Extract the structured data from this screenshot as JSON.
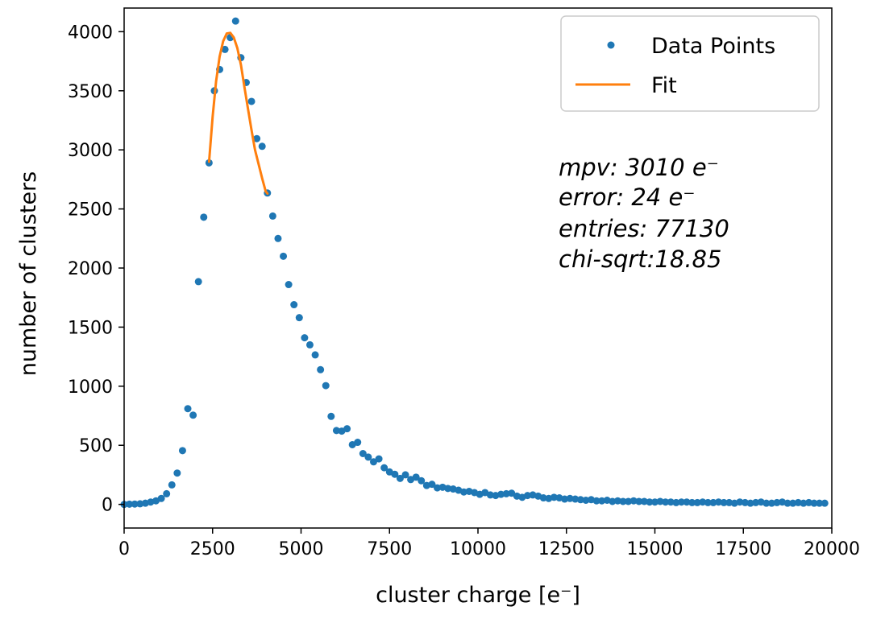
{
  "chart_data": {
    "type": "scatter",
    "xlabel": "cluster charge [e⁻]",
    "ylabel": "number of clusters",
    "xlim": [
      0,
      20000
    ],
    "ylim": [
      -200,
      4200
    ],
    "xticks": [
      0,
      2500,
      5000,
      7500,
      10000,
      12500,
      15000,
      17500,
      20000
    ],
    "yticks": [
      0,
      500,
      1000,
      1500,
      2000,
      2500,
      3000,
      3500,
      4000
    ],
    "grid": false,
    "legend_position": "top-right",
    "colors": {
      "data": "#1f77b4",
      "fit": "#ff7f0e"
    },
    "series": [
      {
        "name": "Data Points",
        "type": "scatter",
        "x": [
          0,
          150,
          300,
          450,
          600,
          750,
          900,
          1050,
          1200,
          1350,
          1500,
          1650,
          1800,
          1950,
          2100,
          2250,
          2400,
          2550,
          2700,
          2850,
          3000,
          3150,
          3300,
          3450,
          3600,
          3750,
          3900,
          4050,
          4200,
          4350,
          4500,
          4650,
          4800,
          4950,
          5100,
          5250,
          5400,
          5550,
          5700,
          5850,
          6000,
          6150,
          6300,
          6450,
          6600,
          6750,
          6900,
          7050,
          7200,
          7350,
          7500,
          7650,
          7800,
          7950,
          8100,
          8250,
          8400,
          8550,
          8700,
          8850,
          9000,
          9150,
          9300,
          9450,
          9600,
          9750,
          9900,
          10050,
          10200,
          10350,
          10500,
          10650,
          10800,
          10950,
          11100,
          11250,
          11400,
          11550,
          11700,
          11850,
          12000,
          12150,
          12300,
          12450,
          12600,
          12750,
          12900,
          13050,
          13200,
          13350,
          13500,
          13650,
          13800,
          13950,
          14100,
          14250,
          14400,
          14550,
          14700,
          14850,
          15000,
          15150,
          15300,
          15450,
          15600,
          15750,
          15900,
          16050,
          16200,
          16350,
          16500,
          16650,
          16800,
          16950,
          17100,
          17250,
          17400,
          17550,
          17700,
          17850,
          18000,
          18150,
          18300,
          18450,
          18600,
          18750,
          18900,
          19050,
          19200,
          19350,
          19500,
          19650,
          19800
        ],
        "y": [
          0,
          2,
          3,
          5,
          10,
          20,
          30,
          50,
          90,
          165,
          265,
          455,
          810,
          755,
          1885,
          2430,
          2890,
          3500,
          3680,
          3850,
          3950,
          4090,
          3780,
          3570,
          3410,
          3095,
          3030,
          2635,
          2440,
          2250,
          2100,
          1860,
          1690,
          1580,
          1410,
          1350,
          1265,
          1140,
          1005,
          745,
          625,
          620,
          640,
          505,
          525,
          430,
          400,
          360,
          385,
          310,
          275,
          255,
          220,
          250,
          210,
          230,
          200,
          160,
          170,
          140,
          145,
          135,
          130,
          120,
          105,
          110,
          100,
          85,
          100,
          80,
          75,
          85,
          90,
          95,
          70,
          60,
          75,
          80,
          70,
          55,
          50,
          60,
          55,
          45,
          50,
          45,
          40,
          35,
          40,
          30,
          30,
          35,
          25,
          30,
          25,
          25,
          30,
          25,
          25,
          20,
          20,
          25,
          20,
          20,
          15,
          20,
          20,
          15,
          15,
          20,
          15,
          15,
          20,
          15,
          15,
          10,
          20,
          15,
          10,
          15,
          20,
          10,
          10,
          15,
          20,
          10,
          10,
          15,
          10,
          15,
          10,
          10,
          10
        ],
        "visible_range": [
          0,
          19800
        ]
      },
      {
        "name": "Fit",
        "type": "line",
        "x": [
          2400,
          2500,
          2600,
          2700,
          2800,
          2900,
          3000,
          3100,
          3200,
          3300,
          3400,
          3500,
          3600,
          3700,
          3800,
          3900,
          4000,
          4050
        ],
        "y": [
          2900,
          3280,
          3580,
          3790,
          3920,
          3985,
          3990,
          3950,
          3860,
          3720,
          3530,
          3350,
          3170,
          3000,
          2880,
          2760,
          2650,
          2630
        ]
      }
    ],
    "annotations": [
      {
        "text": "mpv: 3010 e⁻"
      },
      {
        "text": "error: 24 e⁻"
      },
      {
        "text": "entries: 77130"
      },
      {
        "text": "chi-sqrt:18.85"
      }
    ]
  }
}
